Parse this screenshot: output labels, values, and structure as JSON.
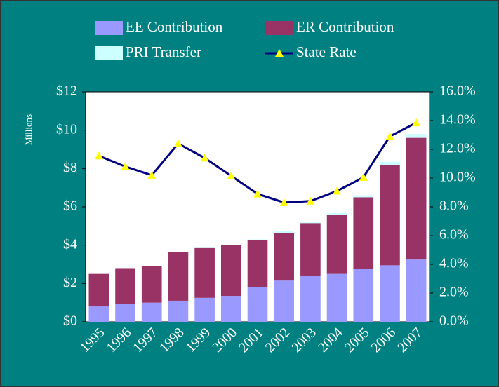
{
  "chart_data": {
    "type": "bar",
    "stacked": true,
    "y_label": "Millions",
    "categories": [
      "1995",
      "1996",
      "1997",
      "1998",
      "1999",
      "2000",
      "2001",
      "2002",
      "2003",
      "2004",
      "2005",
      "2006",
      "2007"
    ],
    "series": [
      {
        "name": "EE Contribution",
        "color": "#9999ff",
        "values": [
          0.8,
          0.95,
          1.0,
          1.1,
          1.25,
          1.35,
          1.8,
          2.15,
          2.4,
          2.5,
          2.75,
          2.95,
          3.25
        ]
      },
      {
        "name": "ER Contribution",
        "color": "#993366",
        "values": [
          1.7,
          1.85,
          1.9,
          2.55,
          2.6,
          2.65,
          2.45,
          2.5,
          2.75,
          3.1,
          3.75,
          5.25,
          6.35
        ]
      },
      {
        "name": "PRI Transfer",
        "color": "#ccffff",
        "values": [
          0,
          0,
          0,
          0,
          0.02,
          0.03,
          0.05,
          0.07,
          0.08,
          0.08,
          0.1,
          0.15,
          0.2
        ]
      },
      {
        "name": "State Rate",
        "color": "#000080",
        "marker_color": "#ffff00",
        "type": "line",
        "axis": "y2",
        "values": [
          11.55,
          10.8,
          10.2,
          12.4,
          11.4,
          10.15,
          8.9,
          8.3,
          8.4,
          9.1,
          10.05,
          12.9,
          13.85
        ]
      }
    ],
    "ylim": [
      0,
      12
    ],
    "yticks": [
      {
        "value": 0,
        "label": "$0"
      },
      {
        "value": 2,
        "label": "$2"
      },
      {
        "value": 4,
        "label": "$4"
      },
      {
        "value": 6,
        "label": "$6"
      },
      {
        "value": 8,
        "label": "$8"
      },
      {
        "value": 10,
        "label": "$10"
      },
      {
        "value": 12,
        "label": "$12"
      }
    ],
    "y2lim": [
      0,
      16
    ],
    "y2ticks": [
      {
        "value": 0,
        "label": "0.0%"
      },
      {
        "value": 2,
        "label": "2.0%"
      },
      {
        "value": 4,
        "label": "4.0%"
      },
      {
        "value": 6,
        "label": "6.0%"
      },
      {
        "value": 8,
        "label": "8.0%"
      },
      {
        "value": 10,
        "label": "10.0%"
      },
      {
        "value": 12,
        "label": "12.0%"
      },
      {
        "value": 14,
        "label": "14.0%"
      },
      {
        "value": 16,
        "label": "16.0%"
      }
    ],
    "grid": false
  }
}
